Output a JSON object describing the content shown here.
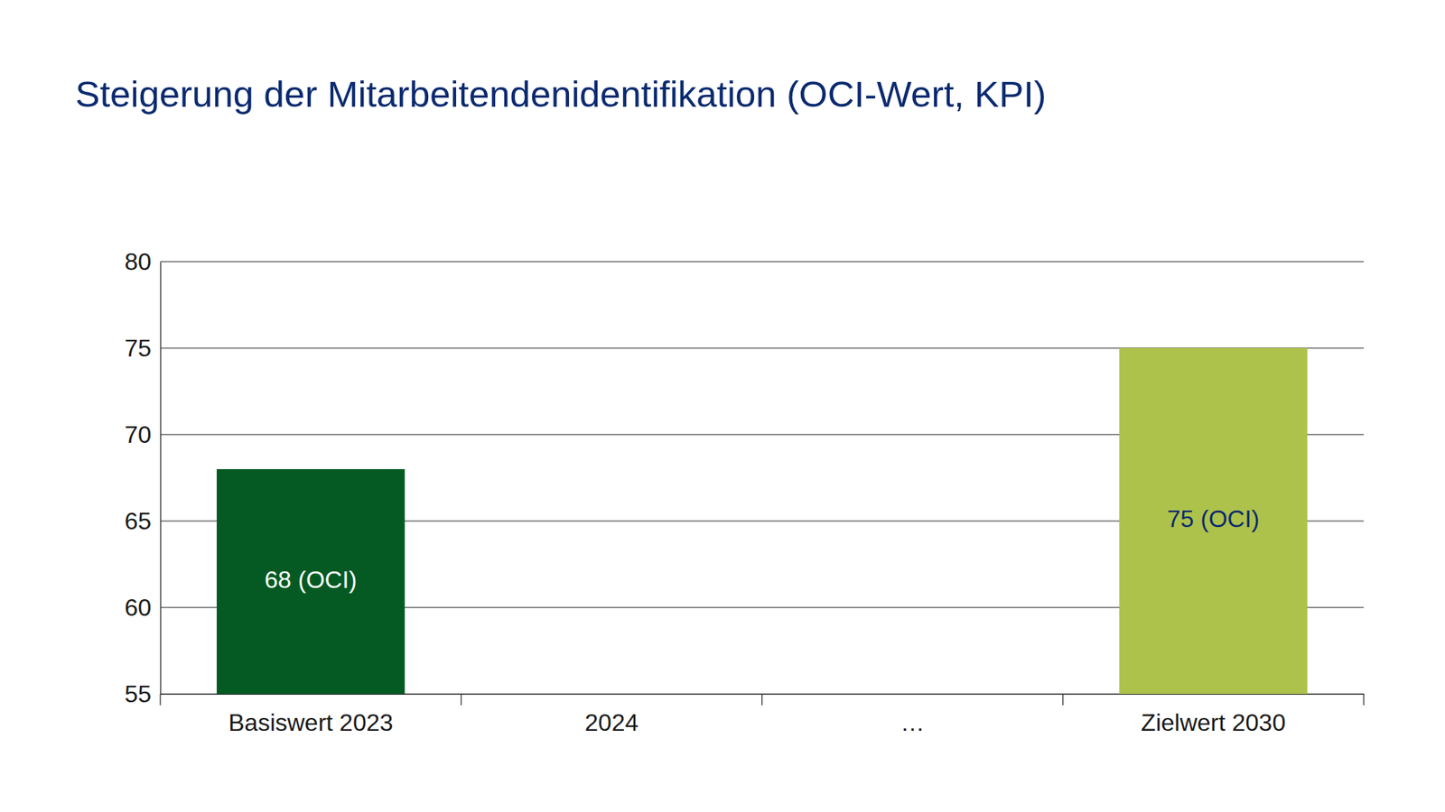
{
  "chart_data": {
    "type": "bar",
    "title": "Steigerung der Mitarbeitendenidentifikation (OCI-Wert, KPI)",
    "categories": [
      "Basiswert 2023",
      "2024",
      "…",
      "Zielwert 2030"
    ],
    "values": [
      68,
      null,
      null,
      75
    ],
    "value_labels": [
      "68 (OCI)",
      null,
      null,
      "75 (OCI)"
    ],
    "colors": [
      "#055a23",
      null,
      null,
      "#adc24b"
    ],
    "ylim": [
      55,
      80
    ],
    "yticks": [
      55,
      60,
      65,
      70,
      75,
      80
    ],
    "grid": true,
    "data_labels": true
  }
}
